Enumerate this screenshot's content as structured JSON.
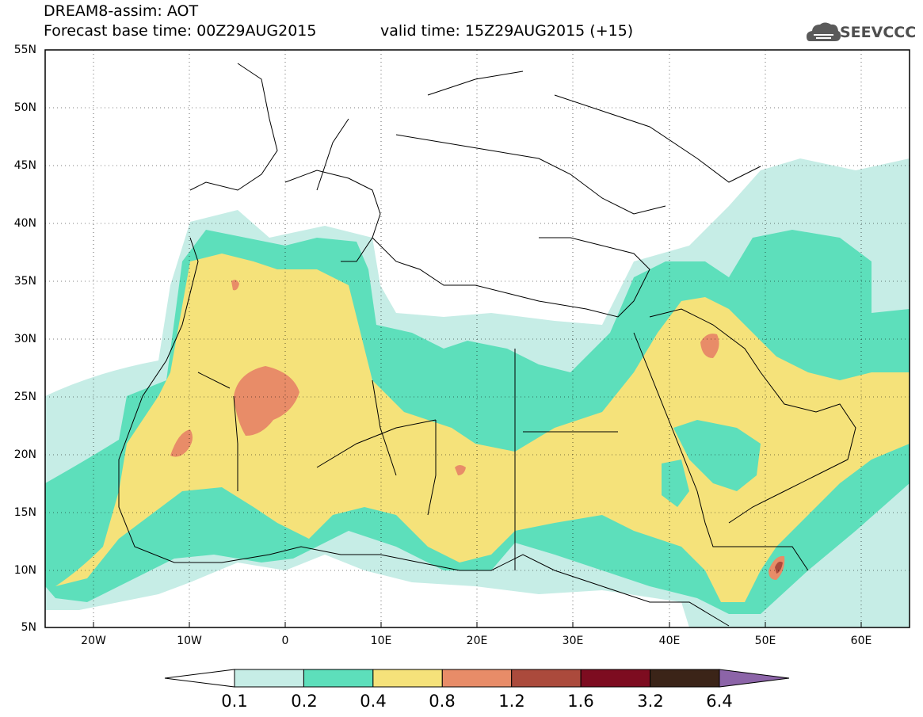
{
  "header": {
    "line1": "DREAM8-assim: AOT",
    "line2": "Forecast base time: 00Z29AUG2015",
    "line2b": "valid time: 15Z29AUG2015 (+15)"
  },
  "logo": {
    "text": "SEEVCCC",
    "icon": "cloud-logo-icon"
  },
  "map": {
    "lat_labels": [
      "55N",
      "50N",
      "45N",
      "40N",
      "35N",
      "30N",
      "25N",
      "20N",
      "15N",
      "10N",
      "5N"
    ],
    "lon_labels": [
      "20W",
      "10W",
      "0",
      "10E",
      "20E",
      "30E",
      "40E",
      "50E",
      "60E"
    ],
    "lon_range": [
      -25,
      65
    ],
    "lat_range": [
      5,
      55
    ],
    "grid": true
  },
  "colorbar": {
    "labels": [
      "0.1",
      "0.2",
      "0.4",
      "0.8",
      "1.2",
      "1.6",
      "3.2",
      "6.4"
    ],
    "colors": [
      "#ffffff",
      "#c6ede6",
      "#5ddfbb",
      "#f5e27a",
      "#e88c68",
      "#ab4a3c",
      "#7d0c20",
      "#3b2418",
      "#8c64a8"
    ]
  }
}
